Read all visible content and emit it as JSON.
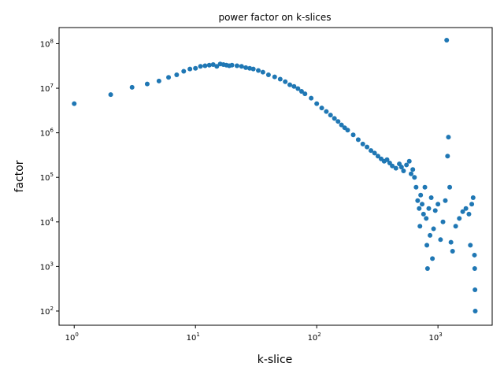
{
  "chart_data": {
    "type": "scatter",
    "title": "power factor on k-slices",
    "xlabel": "k-slice",
    "ylabel": "factor",
    "xscale": "log",
    "yscale": "log",
    "xlim": [
      0.75,
      2800
    ],
    "ylim": [
      48,
      230000000
    ],
    "grid": false,
    "legend": "none",
    "marker_color": "#1f77b4",
    "x_ticks": [
      {
        "value": 1,
        "base": "10",
        "exp": "0"
      },
      {
        "value": 10,
        "base": "10",
        "exp": "1"
      },
      {
        "value": 100,
        "base": "10",
        "exp": "2"
      },
      {
        "value": 1000,
        "base": "10",
        "exp": "3"
      }
    ],
    "y_ticks": [
      {
        "value": 100,
        "base": "10",
        "exp": "2"
      },
      {
        "value": 1000,
        "base": "10",
        "exp": "3"
      },
      {
        "value": 10000,
        "base": "10",
        "exp": "4"
      },
      {
        "value": 100000,
        "base": "10",
        "exp": "5"
      },
      {
        "value": 1000000,
        "base": "10",
        "exp": "6"
      },
      {
        "value": 10000000,
        "base": "10",
        "exp": "7"
      },
      {
        "value": 100000000,
        "base": "10",
        "exp": "8"
      }
    ],
    "series": [
      {
        "points": [
          [
            1,
            4500000
          ],
          [
            2,
            7200000
          ],
          [
            3,
            10500000
          ],
          [
            4,
            12500000
          ],
          [
            5,
            14500000
          ],
          [
            6,
            17500000
          ],
          [
            7,
            20000000
          ],
          [
            8,
            24000000
          ],
          [
            9,
            27000000
          ],
          [
            10,
            28000000
          ],
          [
            11,
            31000000
          ],
          [
            12,
            32000000
          ],
          [
            13,
            33000000
          ],
          [
            14,
            34000000
          ],
          [
            15,
            31000000
          ],
          [
            16,
            35000000
          ],
          [
            17,
            34000000
          ],
          [
            18,
            33000000
          ],
          [
            19,
            32000000
          ],
          [
            20,
            33000000
          ],
          [
            22,
            32000000
          ],
          [
            24,
            31000000
          ],
          [
            26,
            29000000
          ],
          [
            28,
            28000000
          ],
          [
            30,
            27000000
          ],
          [
            33,
            25000000
          ],
          [
            36,
            23000000
          ],
          [
            40,
            20000000
          ],
          [
            45,
            18000000
          ],
          [
            50,
            16000000
          ],
          [
            55,
            14000000
          ],
          [
            60,
            12000000
          ],
          [
            65,
            11000000
          ],
          [
            70,
            9800000
          ],
          [
            75,
            8500000
          ],
          [
            80,
            7500000
          ],
          [
            90,
            6000000
          ],
          [
            100,
            4500000
          ],
          [
            110,
            3600000
          ],
          [
            120,
            3000000
          ],
          [
            130,
            2500000
          ],
          [
            140,
            2100000
          ],
          [
            150,
            1800000
          ],
          [
            160,
            1500000
          ],
          [
            170,
            1300000
          ],
          [
            180,
            1150000
          ],
          [
            200,
            900000
          ],
          [
            220,
            700000
          ],
          [
            240,
            560000
          ],
          [
            260,
            480000
          ],
          [
            280,
            400000
          ],
          [
            300,
            350000
          ],
          [
            320,
            300000
          ],
          [
            340,
            260000
          ],
          [
            360,
            230000
          ],
          [
            380,
            250000
          ],
          [
            400,
            210000
          ],
          [
            420,
            180000
          ],
          [
            450,
            160000
          ],
          [
            480,
            200000
          ],
          [
            500,
            170000
          ],
          [
            520,
            140000
          ],
          [
            550,
            190000
          ],
          [
            580,
            230000
          ],
          [
            600,
            120000
          ],
          [
            620,
            150000
          ],
          [
            640,
            100000
          ],
          [
            660,
            60000
          ],
          [
            680,
            30000
          ],
          [
            700,
            20000
          ],
          [
            710,
            8000
          ],
          [
            720,
            40000
          ],
          [
            740,
            25000
          ],
          [
            760,
            15000
          ],
          [
            780,
            60000
          ],
          [
            800,
            12000
          ],
          [
            810,
            3000
          ],
          [
            820,
            900
          ],
          [
            840,
            20000
          ],
          [
            860,
            5000
          ],
          [
            880,
            35000
          ],
          [
            900,
            1500
          ],
          [
            920,
            7000
          ],
          [
            950,
            18000
          ],
          [
            1000,
            25000
          ],
          [
            1050,
            4000
          ],
          [
            1100,
            10000
          ],
          [
            1150,
            30000
          ],
          [
            1180,
            120000000
          ],
          [
            1200,
            300000
          ],
          [
            1220,
            800000
          ],
          [
            1250,
            60000
          ],
          [
            1280,
            3500
          ],
          [
            1320,
            2200
          ],
          [
            1400,
            8000
          ],
          [
            1500,
            12000
          ],
          [
            1600,
            17000
          ],
          [
            1700,
            20000
          ],
          [
            1800,
            15000
          ],
          [
            1850,
            3000
          ],
          [
            1900,
            25000
          ],
          [
            1950,
            35000
          ],
          [
            2000,
            1800
          ],
          [
            2010,
            900
          ],
          [
            2020,
            300
          ],
          [
            2030,
            100
          ]
        ]
      }
    ]
  }
}
